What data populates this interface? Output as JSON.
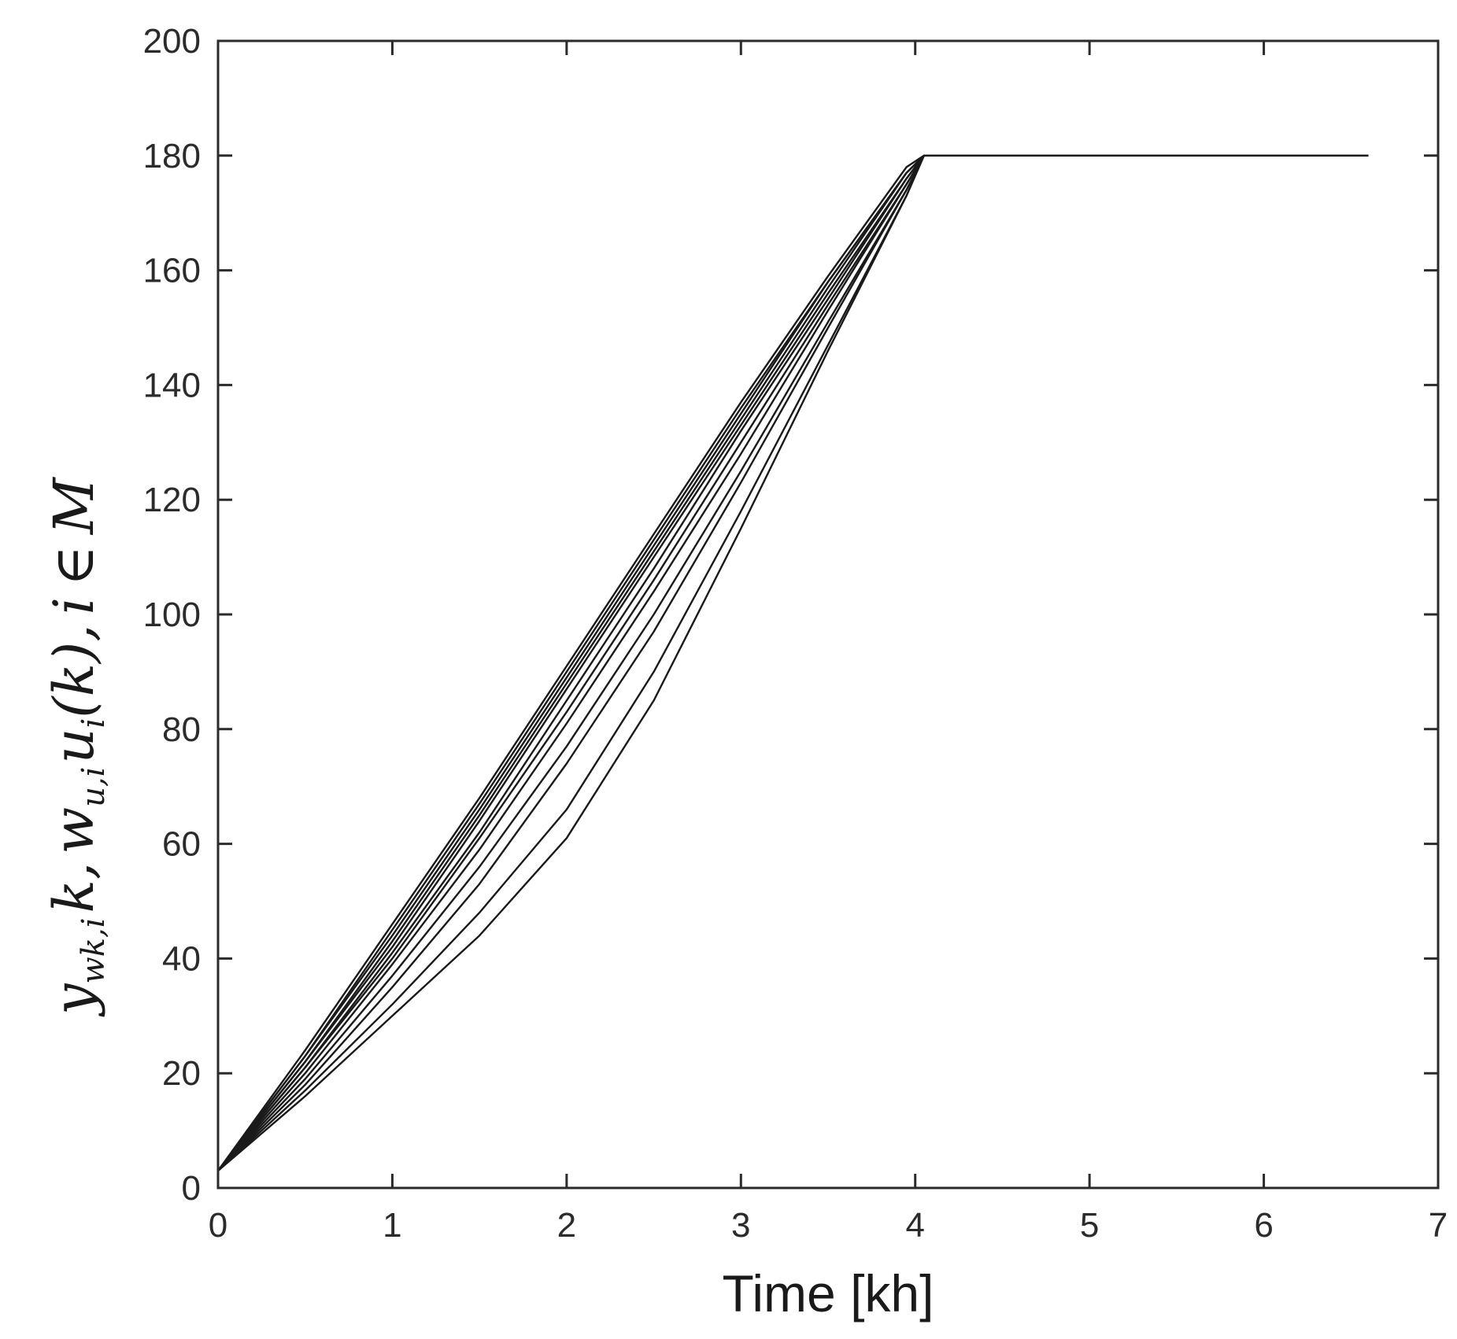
{
  "chart_data": {
    "type": "line",
    "title": "",
    "xlabel": "Time [kh]",
    "ylabel": {
      "y": "y",
      "sub": "wk,i",
      "k": "k",
      "w": "w",
      "wsub": "u,i",
      "u": "u",
      "usub": "i",
      "kparen": "(k)",
      "i": "i",
      "member": "∈",
      "M": "M"
    },
    "xlim": [
      0,
      7
    ],
    "ylim": [
      0,
      200
    ],
    "xticks": [
      "0",
      "1",
      "2",
      "3",
      "4",
      "5",
      "6",
      "7"
    ],
    "yticks": [
      "0",
      "20",
      "40",
      "60",
      "80",
      "100",
      "120",
      "140",
      "160",
      "180",
      "200"
    ],
    "grid": false,
    "legend": "none",
    "line_color": "#1a1a1a",
    "series": [
      {
        "x": [
          0,
          0.5,
          1.0,
          1.5,
          2.0,
          2.5,
          3.0,
          3.5,
          3.95,
          4.05,
          6.6
        ],
        "y": [
          3,
          24,
          46,
          68,
          91,
          114,
          137,
          159,
          178,
          180,
          180
        ]
      },
      {
        "x": [
          0,
          0.5,
          1.0,
          1.5,
          2.0,
          2.5,
          3.0,
          3.5,
          3.95,
          4.05,
          6.6
        ],
        "y": [
          3,
          23,
          45,
          67,
          90,
          113,
          136,
          158,
          177,
          180,
          180
        ]
      },
      {
        "x": [
          0,
          0.5,
          1.0,
          1.5,
          2.0,
          2.5,
          3.0,
          3.5,
          3.95,
          4.05,
          6.6
        ],
        "y": [
          3,
          23,
          44,
          66,
          89,
          112,
          135,
          158,
          177,
          180,
          180
        ]
      },
      {
        "x": [
          0,
          0.5,
          1.0,
          1.5,
          2.0,
          2.5,
          3.0,
          3.5,
          3.95,
          4.05,
          6.6
        ],
        "y": [
          3,
          22,
          43,
          65,
          88,
          111,
          134,
          157,
          177,
          180,
          180
        ]
      },
      {
        "x": [
          0,
          0.5,
          1.0,
          1.5,
          2.0,
          2.5,
          3.0,
          3.5,
          3.95,
          4.05,
          6.6
        ],
        "y": [
          3,
          22,
          42,
          64,
          87,
          110,
          133,
          156,
          176,
          180,
          180
        ]
      },
      {
        "x": [
          0,
          0.5,
          1.0,
          1.5,
          2.0,
          2.5,
          3.0,
          3.5,
          3.95,
          4.05,
          6.6
        ],
        "y": [
          3,
          21,
          41,
          62,
          85,
          108,
          132,
          155,
          176,
          180,
          180
        ]
      },
      {
        "x": [
          0,
          0.5,
          1.0,
          1.5,
          2.0,
          2.5,
          3.0,
          3.5,
          3.95,
          4.05,
          6.6
        ],
        "y": [
          3,
          21,
          40,
          61,
          83,
          106,
          130,
          154,
          175,
          180,
          180
        ]
      },
      {
        "x": [
          0,
          0.5,
          1.0,
          1.5,
          2.0,
          2.5,
          3.0,
          3.5,
          3.95,
          4.05,
          6.6
        ],
        "y": [
          3,
          20,
          39,
          59,
          81,
          104,
          128,
          153,
          175,
          180,
          180
        ]
      },
      {
        "x": [
          0,
          0.5,
          1.0,
          1.5,
          2.0,
          2.5,
          3.0,
          3.5,
          3.95,
          4.05,
          6.6
        ],
        "y": [
          3,
          19,
          37,
          56,
          77,
          100,
          125,
          151,
          174,
          180,
          180
        ]
      },
      {
        "x": [
          0,
          0.5,
          1.0,
          1.5,
          2.0,
          2.5,
          3.0,
          3.5,
          3.95,
          4.05,
          6.6
        ],
        "y": [
          3,
          18,
          35,
          53,
          74,
          97,
          123,
          150,
          174,
          180,
          180
        ]
      },
      {
        "x": [
          0,
          0.5,
          1.0,
          1.5,
          2.0,
          2.5,
          3.0,
          3.5,
          3.95,
          4.05,
          6.6
        ],
        "y": [
          3,
          17,
          32,
          48,
          66,
          90,
          118,
          147,
          173,
          180,
          180
        ]
      },
      {
        "x": [
          0,
          0.5,
          1.0,
          1.5,
          2.0,
          2.5,
          3.0,
          3.5,
          3.95,
          4.05,
          6.6
        ],
        "y": [
          3,
          16,
          30,
          44,
          61,
          85,
          115,
          146,
          173,
          180,
          180
        ]
      }
    ]
  }
}
